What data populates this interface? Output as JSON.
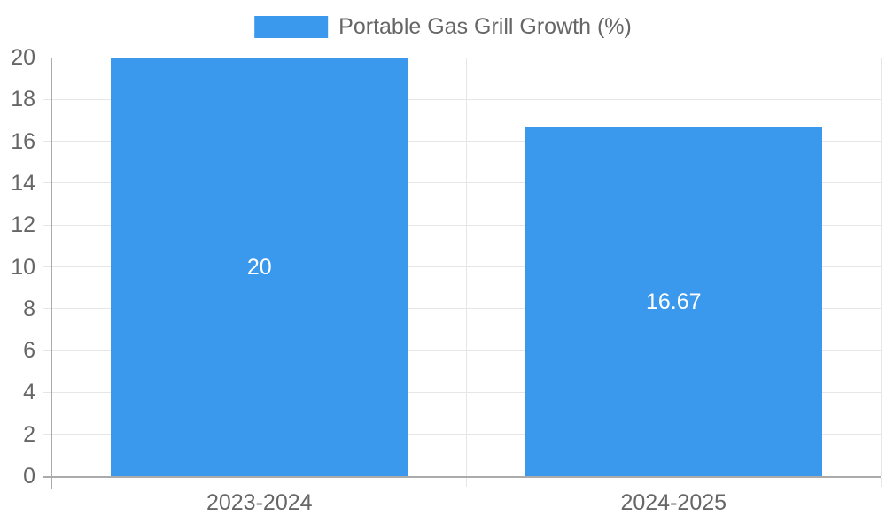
{
  "chart_data": {
    "type": "bar",
    "legend": {
      "position": "top",
      "label": "Portable Gas Grill Growth (%)"
    },
    "categories": [
      "2023-2024",
      "2024-2025"
    ],
    "series": [
      {
        "name": "Portable Gas Grill Growth (%)",
        "values": [
          20,
          16.67
        ],
        "value_labels": [
          "20",
          "16.67"
        ]
      }
    ],
    "ylim": [
      0,
      20
    ],
    "ytick_step": 2,
    "yticks": [
      0,
      2,
      4,
      6,
      8,
      10,
      12,
      14,
      16,
      18,
      20
    ],
    "grid": true,
    "colors": {
      "bar": "#3A99EC",
      "grid": "#E6E6E6",
      "axis": "#ABABAB",
      "tick_text": "#666666",
      "value_label": "#FFFFFF",
      "background": "#FFFFFF"
    }
  }
}
